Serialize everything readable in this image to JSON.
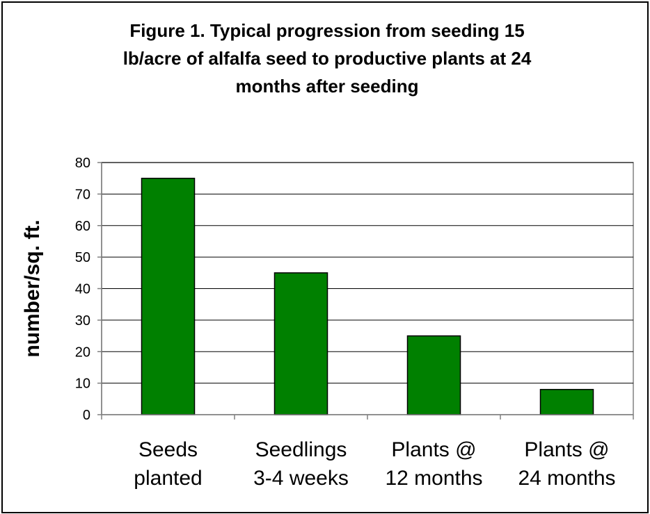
{
  "chart_data": {
    "type": "bar",
    "title": "Figure 1.  Typical progression from seeding 15\nlb/acre of alfalfa seed to productive plants at 24\nmonths after seeding",
    "ylabel": "number/sq. ft.",
    "xlabel": "",
    "categories": [
      "Seeds\nplanted",
      "Seedlings\n3-4 weeks",
      "Plants @\n12 months",
      "Plants @\n24 months"
    ],
    "values": [
      75,
      45,
      25,
      8
    ],
    "ylim": [
      0,
      80
    ],
    "yticks": [
      0,
      10,
      20,
      30,
      40,
      50,
      60,
      70,
      80
    ],
    "grid": true,
    "legend": "none",
    "colors": {
      "bar_fill": "#008000",
      "bar_stroke": "#000000",
      "grid": "#000000",
      "axis": "#808080"
    }
  }
}
